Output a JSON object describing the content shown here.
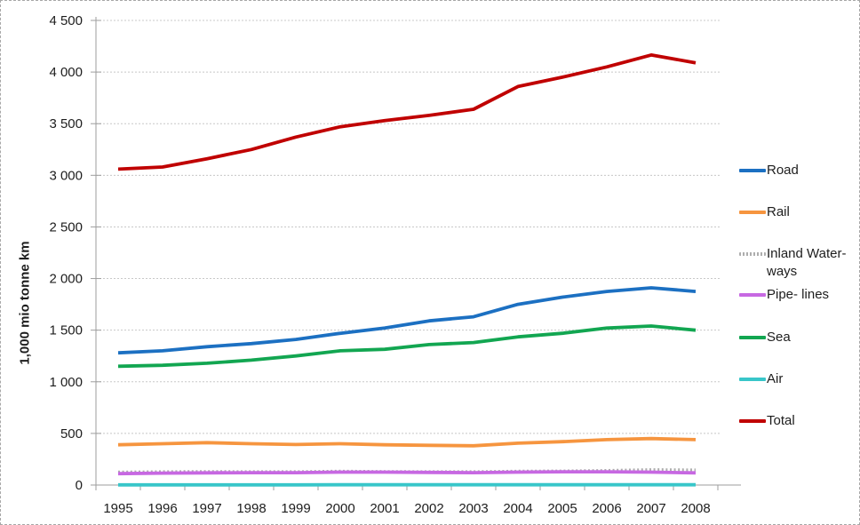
{
  "chart_data": {
    "type": "line",
    "title": "",
    "xlabel": "",
    "ylabel": "1,000 mio tonne km",
    "ylim": [
      0,
      4500
    ],
    "ytick_step": 500,
    "ytick_labels": [
      "0",
      "500",
      "1 000",
      "1 500",
      "2 000",
      "2 500",
      "3 000",
      "3 500",
      "4 000",
      "4 500"
    ],
    "grid": true,
    "legend_position": "right",
    "categories": [
      "1995",
      "1996",
      "1997",
      "1998",
      "1999",
      "2000",
      "2001",
      "2002",
      "2003",
      "2004",
      "2005",
      "2006",
      "2007",
      "2008"
    ],
    "series": [
      {
        "name": "Road",
        "color": "#1C70C2",
        "style": "solid",
        "values": [
          1280,
          1300,
          1340,
          1370,
          1410,
          1470,
          1520,
          1590,
          1630,
          1750,
          1820,
          1875,
          1910,
          1875
        ]
      },
      {
        "name": "Rail",
        "color": "#F6953F",
        "style": "solid",
        "values": [
          390,
          400,
          410,
          400,
          392,
          400,
          390,
          385,
          380,
          405,
          420,
          440,
          450,
          440
        ]
      },
      {
        "name": "Inland Waterways",
        "color": "#ADADAD",
        "style": "dotted",
        "values": [
          125,
          128,
          130,
          128,
          128,
          133,
          130,
          128,
          128,
          133,
          135,
          140,
          148,
          145
        ]
      },
      {
        "name": "Pipe-lines",
        "color": "#C768E2",
        "style": "solid",
        "values": [
          110,
          115,
          118,
          120,
          120,
          125,
          125,
          122,
          120,
          125,
          128,
          128,
          125,
          118
        ]
      },
      {
        "name": "Sea",
        "color": "#12A651",
        "style": "solid",
        "values": [
          1150,
          1160,
          1180,
          1210,
          1250,
          1300,
          1315,
          1360,
          1380,
          1435,
          1470,
          1520,
          1540,
          1500
        ]
      },
      {
        "name": "Air",
        "color": "#38C6C9",
        "style": "solid",
        "values": [
          2,
          2,
          2,
          2,
          2,
          3,
          3,
          3,
          3,
          3,
          3,
          3,
          3,
          3
        ]
      },
      {
        "name": "Total",
        "color": "#C00000",
        "style": "solid",
        "values": [
          3060,
          3080,
          3160,
          3250,
          3370,
          3470,
          3530,
          3580,
          3640,
          3860,
          3950,
          4050,
          4165,
          4090
        ]
      }
    ],
    "legend": {
      "items": [
        {
          "label": "Road"
        },
        {
          "label": "Rail"
        },
        {
          "label": "Inland Water-\nways"
        },
        {
          "label": "Pipe- lines"
        },
        {
          "label": "Sea"
        },
        {
          "label": "Air"
        },
        {
          "label": "Total"
        }
      ]
    },
    "colors": {
      "gridline": "#c8c8c8",
      "axis": "#9e9e9e",
      "text": "#1d1d1d"
    }
  }
}
